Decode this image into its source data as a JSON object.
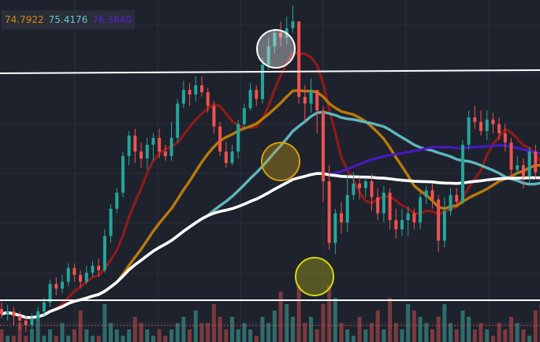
{
  "legend": [
    {
      "value": "74.7922",
      "color": "#d4890b"
    },
    {
      "value": "75.4176",
      "color": "#5ec9d0"
    },
    {
      "value": "76.3640",
      "color": "#5a1fd6"
    }
  ],
  "colors": {
    "background": "#1e222d",
    "grid": "#2b2f3a",
    "up": "#26a69a",
    "down": "#ef5350",
    "ma_red": "#8f1a1a",
    "ma_orange": "#b87a0a",
    "ma_teal": "#5fb6bd",
    "ma_purple": "#4a18c8",
    "ma_white": "#ffffff",
    "horizontal_line": "#ffffff",
    "volume_ref": "#b85a5a",
    "circle_top": "#ffffff",
    "circle_mid": "#d4a010",
    "circle_bottom": "#d8d810"
  },
  "chart_data": {
    "type": "candlestick",
    "title": "",
    "x_count": 90,
    "price_range": [
      66.0,
      80.7
    ],
    "candles": [
      [
        67.3,
        67.1,
        67.6,
        66.9
      ],
      [
        67.1,
        67.2,
        67.5,
        66.8
      ],
      [
        67.2,
        67.0,
        67.4,
        66.6
      ],
      [
        67.0,
        66.8,
        67.2,
        66.4
      ],
      [
        66.8,
        66.6,
        67.0,
        66.3
      ],
      [
        66.6,
        66.9,
        67.1,
        66.4
      ],
      [
        66.9,
        67.2,
        67.4,
        66.8
      ],
      [
        67.2,
        67.6,
        67.8,
        67.0
      ],
      [
        67.6,
        68.4,
        68.6,
        67.4
      ],
      [
        68.4,
        68.2,
        68.7,
        67.9
      ],
      [
        68.2,
        68.5,
        68.8,
        68.0
      ],
      [
        68.5,
        69.1,
        69.3,
        68.3
      ],
      [
        69.1,
        68.8,
        69.3,
        68.5
      ],
      [
        68.8,
        68.5,
        69.0,
        68.2
      ],
      [
        68.5,
        68.9,
        69.2,
        68.4
      ],
      [
        68.9,
        69.2,
        69.4,
        68.7
      ],
      [
        69.2,
        69.0,
        69.5,
        68.7
      ],
      [
        69.0,
        70.5,
        70.8,
        68.9
      ],
      [
        70.5,
        71.7,
        71.9,
        70.2
      ],
      [
        71.7,
        72.4,
        72.6,
        71.5
      ],
      [
        72.4,
        74.0,
        74.2,
        72.2
      ],
      [
        74.0,
        74.9,
        75.1,
        73.6
      ],
      [
        74.9,
        74.2,
        75.2,
        73.7
      ],
      [
        74.2,
        73.9,
        74.6,
        73.5
      ],
      [
        73.9,
        74.5,
        74.8,
        73.4
      ],
      [
        74.5,
        74.8,
        75.0,
        73.8
      ],
      [
        74.8,
        74.2,
        75.2,
        73.9
      ],
      [
        74.2,
        74.0,
        74.5,
        73.8
      ],
      [
        74.0,
        74.8,
        75.5,
        73.8
      ],
      [
        74.8,
        76.3,
        76.5,
        74.6
      ],
      [
        76.3,
        76.9,
        77.3,
        76.1
      ],
      [
        76.9,
        76.7,
        77.2,
        76.2
      ],
      [
        76.7,
        77.1,
        77.5,
        76.4
      ],
      [
        77.1,
        76.8,
        77.5,
        76.6
      ],
      [
        76.8,
        76.2,
        77.0,
        75.9
      ],
      [
        76.2,
        75.3,
        76.4,
        75.0
      ],
      [
        75.3,
        74.2,
        75.5,
        74.0
      ],
      [
        74.2,
        73.7,
        74.6,
        73.5
      ],
      [
        73.7,
        74.2,
        74.5,
        73.6
      ],
      [
        74.2,
        75.4,
        75.6,
        73.9
      ],
      [
        75.4,
        76.1,
        76.3,
        75.2
      ],
      [
        76.1,
        76.9,
        77.2,
        76.0
      ],
      [
        76.9,
        76.5,
        77.1,
        76.2
      ],
      [
        76.5,
        78.0,
        78.3,
        76.3
      ],
      [
        78.0,
        78.8,
        79.2,
        77.8
      ],
      [
        78.8,
        79.4,
        79.6,
        78.5
      ],
      [
        79.4,
        79.2,
        79.9,
        78.8
      ],
      [
        79.2,
        79.6,
        80.1,
        78.9
      ],
      [
        79.6,
        79.9,
        80.6,
        79.4
      ],
      [
        79.9,
        76.6,
        79.9,
        76.3
      ],
      [
        76.6,
        76.3,
        77.1,
        75.5
      ],
      [
        76.3,
        76.9,
        77.4,
        75.9
      ],
      [
        76.9,
        76.0,
        76.9,
        75.0
      ],
      [
        76.0,
        72.9,
        76.2,
        72.0
      ],
      [
        72.9,
        70.2,
        73.6,
        69.9
      ],
      [
        70.2,
        71.5,
        71.7,
        69.7
      ],
      [
        71.5,
        71.1,
        72.0,
        70.6
      ],
      [
        71.1,
        72.3,
        73.2,
        70.7
      ],
      [
        72.3,
        72.8,
        73.3,
        72.1
      ],
      [
        72.8,
        72.6,
        73.1,
        72.1
      ],
      [
        72.6,
        72.9,
        73.0,
        72.2
      ],
      [
        72.9,
        72.2,
        73.2,
        71.6
      ],
      [
        72.2,
        71.5,
        72.6,
        71.2
      ],
      [
        71.5,
        72.4,
        72.7,
        71.1
      ],
      [
        72.4,
        71.2,
        72.6,
        70.8
      ],
      [
        71.2,
        70.8,
        71.7,
        70.4
      ],
      [
        70.8,
        71.2,
        71.7,
        70.5
      ],
      [
        71.2,
        71.5,
        71.8,
        70.5
      ],
      [
        71.5,
        71.1,
        71.7,
        70.8
      ],
      [
        71.1,
        72.2,
        72.4,
        70.8
      ],
      [
        72.2,
        72.5,
        72.7,
        71.9
      ],
      [
        72.5,
        72.1,
        72.8,
        71.7
      ],
      [
        72.1,
        70.3,
        72.3,
        69.8
      ],
      [
        70.3,
        71.6,
        72.2,
        70.0
      ],
      [
        71.6,
        72.3,
        72.6,
        71.4
      ],
      [
        72.3,
        72.0,
        72.6,
        71.8
      ],
      [
        72.0,
        74.5,
        74.7,
        71.9
      ],
      [
        74.5,
        75.7,
        76.0,
        74.3
      ],
      [
        75.7,
        75.5,
        76.2,
        75.2
      ],
      [
        75.5,
        75.1,
        76.0,
        74.9
      ],
      [
        75.1,
        75.6,
        76.0,
        74.7
      ],
      [
        75.6,
        75.4,
        75.9,
        75.0
      ],
      [
        75.4,
        75.0,
        75.7,
        74.7
      ],
      [
        75.0,
        74.6,
        75.4,
        74.2
      ],
      [
        74.6,
        73.4,
        74.8,
        73.1
      ],
      [
        73.4,
        73.6,
        74.0,
        73.2
      ],
      [
        73.6,
        73.1,
        73.9,
        72.6
      ],
      [
        73.1,
        74.2,
        74.4,
        72.8
      ],
      [
        74.2,
        73.3,
        74.5,
        73.0
      ],
      [
        73.3,
        72.1,
        73.6,
        71.7
      ]
    ],
    "volume": [
      2,
      1,
      1,
      3,
      1,
      2,
      4,
      1,
      2,
      1,
      3,
      1,
      2,
      5,
      2,
      1,
      1,
      6,
      3,
      2,
      1,
      2,
      4,
      3,
      2,
      1,
      2,
      1,
      2,
      3,
      4,
      2,
      5,
      3,
      3,
      6,
      4,
      2,
      4,
      2,
      3,
      2,
      1,
      4,
      3,
      5,
      8,
      6,
      4,
      9,
      3,
      4,
      2,
      6,
      9,
      7,
      3,
      2,
      1,
      4,
      2,
      3,
      5,
      2,
      7,
      3,
      2,
      6,
      5,
      4,
      3,
      2,
      4,
      6,
      3,
      2,
      5,
      4,
      2,
      3,
      2,
      1,
      3,
      2,
      4,
      3,
      2,
      1,
      5,
      6
    ],
    "volume_range": [
      0,
      10
    ],
    "moving_averages": [
      {
        "color": "#8f1a1a",
        "width": 3.2,
        "period": 8
      },
      {
        "color": "#b87a0a",
        "width": 3.4,
        "period": 20
      },
      {
        "color": "#5fb6bd",
        "width": 3.4,
        "period": 35
      },
      {
        "color": "#4a18c8",
        "width": 3.0,
        "period": 55
      },
      {
        "color": "#ffffff",
        "width": 3.6,
        "period": 90
      }
    ]
  }
}
